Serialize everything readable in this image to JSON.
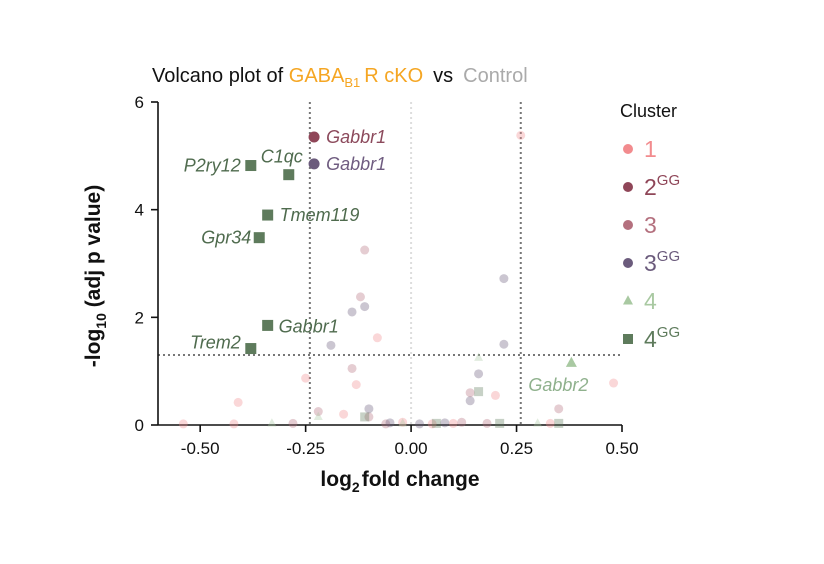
{
  "chart_data": {
    "type": "scatter",
    "title": {
      "prefix": "Volcano plot of ",
      "condition_base": "GABA",
      "condition_sub": "B1",
      "condition_suffix": "R cKO",
      "vs": "vs",
      "control": "Control"
    },
    "xlabel": {
      "base": "log",
      "sub": "2",
      "suffix": "fold change"
    },
    "ylabel": {
      "prefix": "-log",
      "sub": "10",
      "suffix": " (adj p value)"
    },
    "xlim": [
      -0.6,
      0.5
    ],
    "ylim": [
      0,
      6
    ],
    "x_ticks": [
      -0.5,
      -0.25,
      0.0,
      0.25,
      0.5
    ],
    "x_tick_labels": [
      "-0.50",
      "-0.25",
      "0.00",
      "0.25",
      "0.50"
    ],
    "y_ticks": [
      0,
      2,
      4,
      6
    ],
    "y_tick_labels": [
      "0",
      "2",
      "4",
      "6"
    ],
    "fc_thresholds": [
      -0.24,
      0.26
    ],
    "p_threshold": 1.3,
    "colors": {
      "title_condition": "#f5a623",
      "title_control": "#aaaaaa",
      "threshold": "#777777",
      "center_line": "#dddddd",
      "label_gabbr1_c2": "#8c4a5c",
      "label_gabbr1_c3gg": "#6f5c80",
      "label_c4gg": "#4f6b4e",
      "label_c4": "#8fb18d"
    },
    "legend": {
      "title": "Cluster",
      "position": "right",
      "items": [
        {
          "key": "c1",
          "label": "1",
          "sup": "",
          "color": "#f28b8e",
          "marker": "circle"
        },
        {
          "key": "c2gg",
          "label": "2",
          "sup": "GG",
          "color": "#8f4658",
          "marker": "circle"
        },
        {
          "key": "c3",
          "label": "3",
          "sup": "",
          "color": "#b4707e",
          "marker": "circle"
        },
        {
          "key": "c3gg",
          "label": "3",
          "sup": "GG",
          "color": "#6b5b7c",
          "marker": "circle"
        },
        {
          "key": "c4",
          "label": "4",
          "sup": "",
          "color": "#a9c9a2",
          "marker": "triangle"
        },
        {
          "key": "c4gg",
          "label": "4",
          "sup": "GG",
          "color": "#5e7b5c",
          "marker": "square"
        }
      ]
    },
    "series": [
      {
        "name": "2GG",
        "key": "c2gg",
        "highlight": true,
        "points": [
          {
            "x": -0.23,
            "y": 5.35,
            "label": "Gabbr1"
          }
        ]
      },
      {
        "name": "3GG",
        "key": "c3gg",
        "highlight": true,
        "points": [
          {
            "x": -0.23,
            "y": 4.85,
            "label": "Gabbr1"
          }
        ]
      },
      {
        "name": "4GG",
        "key": "c4gg",
        "highlight": true,
        "points": [
          {
            "x": -0.38,
            "y": 4.82,
            "label": "P2ry12"
          },
          {
            "x": -0.29,
            "y": 4.65,
            "label": "C1qc"
          },
          {
            "x": -0.34,
            "y": 3.9,
            "label": "Tmem119"
          },
          {
            "x": -0.36,
            "y": 3.48,
            "label": "Gpr34"
          },
          {
            "x": -0.34,
            "y": 1.85,
            "label": "Gabbr1"
          },
          {
            "x": -0.38,
            "y": 1.42,
            "label": "Trem2"
          }
        ]
      },
      {
        "name": "4",
        "key": "c4",
        "highlight": true,
        "points": [
          {
            "x": 0.38,
            "y": 1.15,
            "label": "Gabbr2"
          }
        ]
      },
      {
        "name": "1 (background)",
        "key": "c1",
        "highlight": false,
        "points": [
          {
            "x": 0.48,
            "y": 0.78
          },
          {
            "x": 0.26,
            "y": 5.38
          },
          {
            "x": -0.41,
            "y": 0.42
          },
          {
            "x": -0.25,
            "y": 0.87
          },
          {
            "x": -0.13,
            "y": 0.75
          },
          {
            "x": 0.2,
            "y": 0.55
          },
          {
            "x": -0.08,
            "y": 1.62
          },
          {
            "x": -0.02,
            "y": 0.05
          },
          {
            "x": 0.1,
            "y": 0.03
          },
          {
            "x": -0.54,
            "y": 0.02
          },
          {
            "x": -0.42,
            "y": 0.02
          },
          {
            "x": 0.33,
            "y": 0.03
          },
          {
            "x": -0.16,
            "y": 0.2
          },
          {
            "x": 0.05,
            "y": 0.02
          }
        ]
      },
      {
        "name": "3 (background)",
        "key": "c3",
        "highlight": false,
        "points": [
          {
            "x": -0.12,
            "y": 2.38
          },
          {
            "x": -0.11,
            "y": 3.25
          },
          {
            "x": -0.14,
            "y": 1.05
          },
          {
            "x": 0.14,
            "y": 0.6
          },
          {
            "x": 0.35,
            "y": 0.3
          },
          {
            "x": -0.22,
            "y": 0.25
          },
          {
            "x": -0.28,
            "y": 0.03
          },
          {
            "x": -0.06,
            "y": 0.02
          },
          {
            "x": 0.18,
            "y": 0.03
          },
          {
            "x": -0.1,
            "y": 0.15
          },
          {
            "x": 0.12,
            "y": 0.05
          }
        ]
      },
      {
        "name": "3GG (background)",
        "key": "c3gg",
        "highlight": false,
        "points": [
          {
            "x": 0.22,
            "y": 2.72
          },
          {
            "x": -0.14,
            "y": 2.1
          },
          {
            "x": -0.11,
            "y": 2.2
          },
          {
            "x": -0.19,
            "y": 1.48
          },
          {
            "x": 0.22,
            "y": 1.5
          },
          {
            "x": 0.16,
            "y": 0.95
          },
          {
            "x": 0.14,
            "y": 0.45
          },
          {
            "x": -0.1,
            "y": 0.3
          },
          {
            "x": -0.05,
            "y": 0.04
          },
          {
            "x": 0.08,
            "y": 0.04
          },
          {
            "x": 0.02,
            "y": 0.02
          }
        ]
      },
      {
        "name": "4 (background)",
        "key": "c4",
        "highlight": false,
        "points": [
          {
            "x": 0.16,
            "y": 1.25
          },
          {
            "x": -0.22,
            "y": 0.15
          },
          {
            "x": -0.33,
            "y": 0.03
          },
          {
            "x": 0.3,
            "y": 0.03
          },
          {
            "x": -0.02,
            "y": 0.03
          }
        ]
      },
      {
        "name": "4GG (background)",
        "key": "c4gg",
        "highlight": false,
        "points": [
          {
            "x": 0.16,
            "y": 0.62
          },
          {
            "x": -0.11,
            "y": 0.15
          },
          {
            "x": 0.21,
            "y": 0.03
          },
          {
            "x": 0.06,
            "y": 0.03
          },
          {
            "x": 0.35,
            "y": 0.03
          }
        ]
      }
    ]
  }
}
